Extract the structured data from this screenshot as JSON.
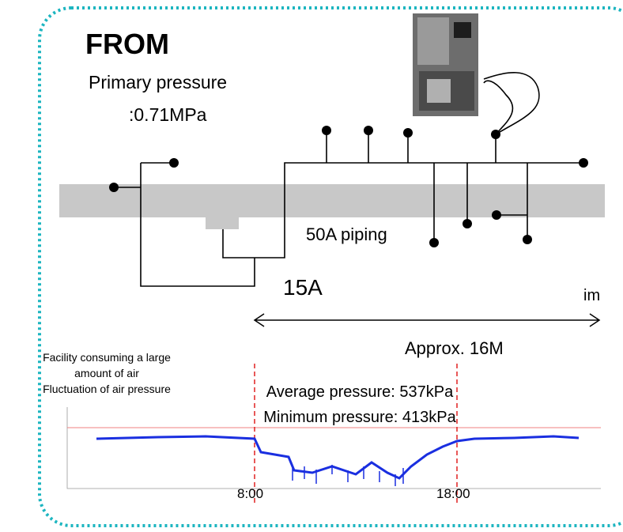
{
  "header": {
    "title": "FROM",
    "primary_pressure": [
      "Primary pressure",
      ":0.71MPa"
    ]
  },
  "piping": {
    "main": "50A piping",
    "branch": "15A",
    "cut_text": "im",
    "distance": "Approx. 16M"
  },
  "caption": {
    "lines": [
      "Facility consuming a large",
      "amount of air",
      "Fluctuation of air pressure"
    ]
  },
  "graph": {
    "average": "Average pressure: 537kPa",
    "minimum": "Minimum pressure: 413kPa",
    "start_time": "8:00",
    "end_time": "18:00"
  }
}
